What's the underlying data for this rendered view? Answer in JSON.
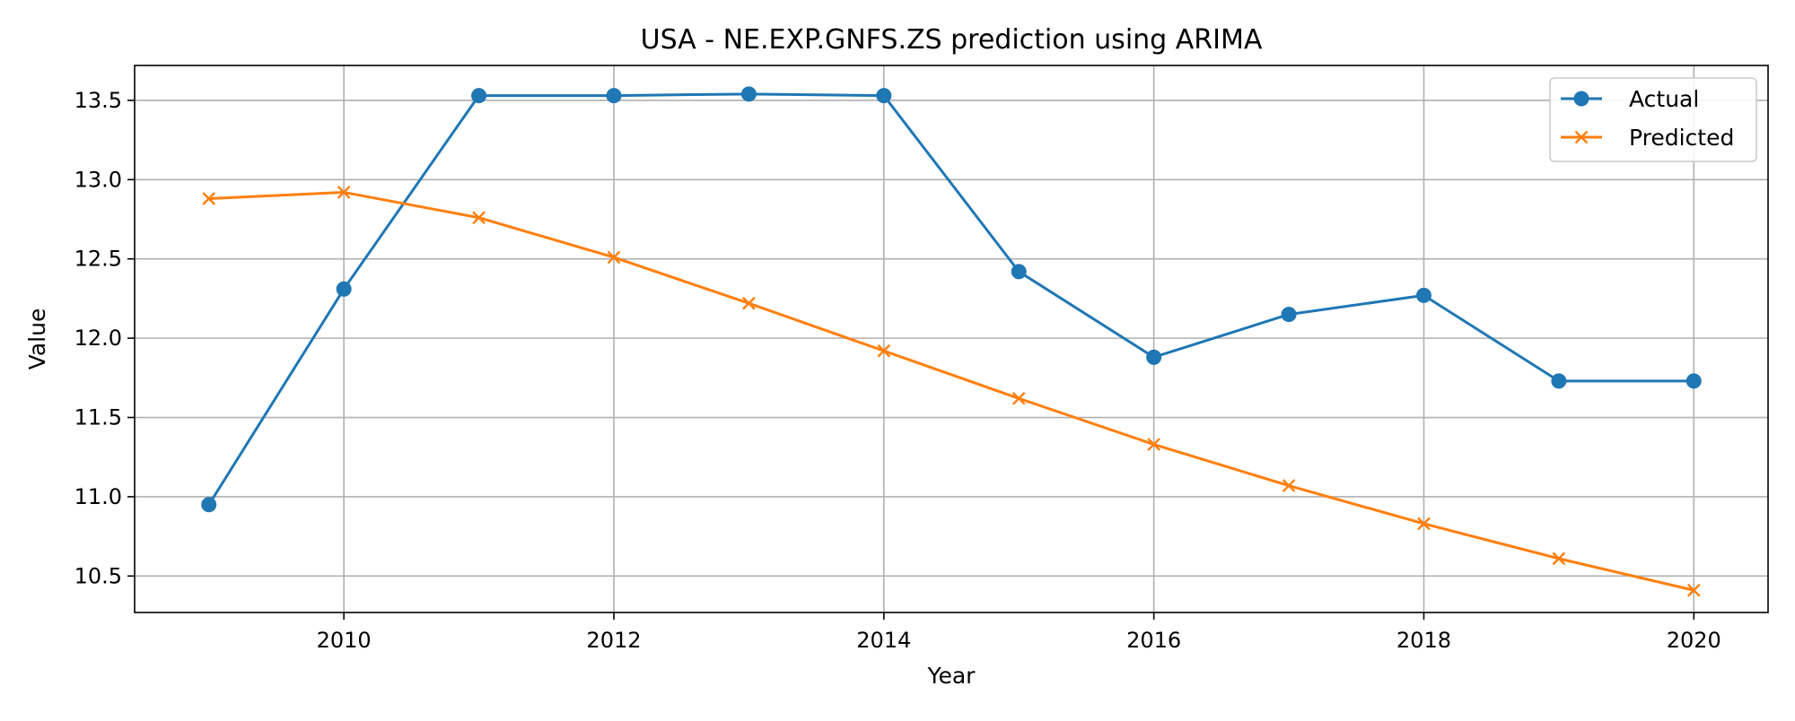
{
  "chart_data": {
    "type": "line",
    "title": "USA - NE.EXP.GNFS.ZS prediction using ARIMA",
    "xlabel": "Year",
    "ylabel": "Value",
    "xlim": [
      2008.45,
      2020.55
    ],
    "ylim": [
      10.27,
      13.72
    ],
    "xticks": [
      2010,
      2012,
      2014,
      2016,
      2018,
      2020
    ],
    "yticks": [
      10.5,
      11.0,
      11.5,
      12.0,
      12.5,
      13.0,
      13.5
    ],
    "ytick_labels": [
      "10.5",
      "11.0",
      "11.5",
      "12.0",
      "12.5",
      "13.0",
      "13.5"
    ],
    "grid": true,
    "legend_position": "top-right",
    "x": [
      2009,
      2010,
      2011,
      2012,
      2013,
      2014,
      2015,
      2016,
      2017,
      2018,
      2019,
      2020
    ],
    "series": [
      {
        "name": "Actual",
        "color": "#1f77b4",
        "marker": "circle",
        "values": [
          10.95,
          12.31,
          13.53,
          13.53,
          13.54,
          13.53,
          12.42,
          11.88,
          12.15,
          12.27,
          11.73,
          11.73
        ]
      },
      {
        "name": "Predicted",
        "color": "#ff7f0e",
        "marker": "x",
        "values": [
          12.88,
          12.92,
          12.76,
          12.51,
          12.22,
          11.92,
          11.62,
          11.33,
          11.07,
          10.83,
          10.61,
          10.41
        ]
      }
    ]
  }
}
